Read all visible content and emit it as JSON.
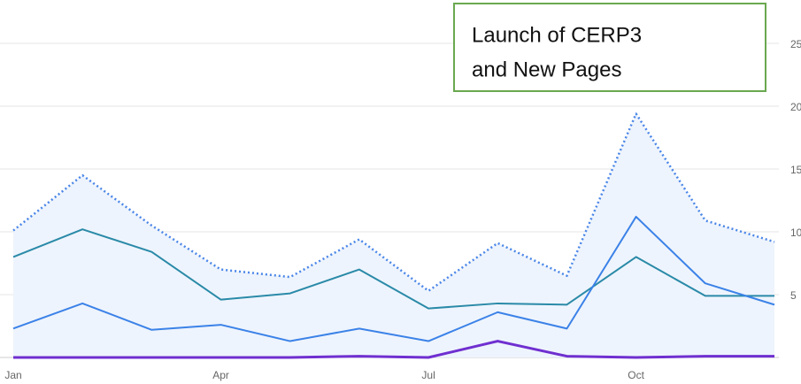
{
  "chart_data": {
    "type": "line",
    "categories": [
      "Jan",
      null,
      null,
      "Apr",
      null,
      null,
      "Jul",
      null,
      null,
      "Oct",
      null,
      null
    ],
    "series": [
      {
        "color": "#4a86e8",
        "dash": "dotted",
        "fill": "#eef4fd",
        "values": [
          10.1,
          14.5,
          10.5,
          7.0,
          6.4,
          9.4,
          5.3,
          9.1,
          6.5,
          19.4,
          10.9,
          9.2
        ]
      },
      {
        "color": "#2a8aa8",
        "values": [
          8.0,
          10.2,
          8.4,
          4.6,
          5.1,
          7.0,
          3.9,
          4.3,
          4.2,
          8.0,
          4.9,
          4.9
        ]
      },
      {
        "color": "#3b82e8",
        "values": [
          2.3,
          4.3,
          2.2,
          2.6,
          1.3,
          2.3,
          1.3,
          3.6,
          2.3,
          11.2,
          5.9,
          4.2
        ]
      },
      {
        "color": "#6f2fd0",
        "values": [
          0,
          0,
          0,
          0,
          0,
          0.1,
          0,
          1.3,
          0.1,
          0,
          0.1,
          0.1
        ]
      }
    ],
    "ylim": [
      0,
      25
    ],
    "yticks": [
      5,
      10,
      15,
      20,
      25
    ],
    "grid": true,
    "annotation": [
      "Launch of CERP3",
      "and New Pages"
    ]
  }
}
